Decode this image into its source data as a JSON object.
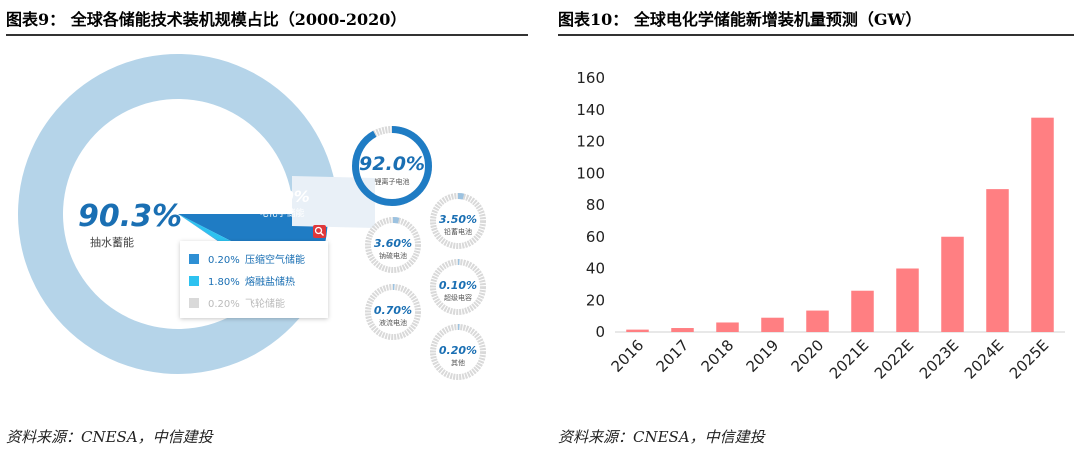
{
  "left": {
    "title": "图表9： 全球各储能技术装机规模占比（2000-2020）",
    "source": "资料来源：CNESA，中信建投",
    "chart_data": {
      "type": "pie",
      "title": "全球各储能技术装机规模占比（2000-2020）",
      "main_slices": [
        {
          "name": "抽水蓄能",
          "percent": 90.3,
          "label": "90.3%"
        },
        {
          "name": "电化学储能",
          "percent": 7.5,
          "label": "7.50%"
        },
        {
          "name": "熔融盐储热",
          "percent": 1.8,
          "label": "1.80%"
        },
        {
          "name": "压缩空气储能",
          "percent": 0.2,
          "label": "0.20%"
        },
        {
          "name": "飞轮储能",
          "percent": 0.2,
          "label": "0.20%"
        }
      ],
      "legend": [
        {
          "value": "0.20%",
          "name": "压缩空气储能",
          "color": "#2e8fd4"
        },
        {
          "value": "1.80%",
          "name": "熔融盐储热",
          "color": "#2dc2f0"
        },
        {
          "value": "0.20%",
          "name": "飞轮储能",
          "color": "#d9d9d9"
        }
      ],
      "breakdown": [
        {
          "name": "锂离子电池",
          "percent": 92.0,
          "label": "92.0%"
        },
        {
          "name": "铅蓄电池",
          "percent": 3.5,
          "label": "3.50%"
        },
        {
          "name": "钠硫电池",
          "percent": 3.6,
          "label": "3.60%"
        },
        {
          "name": "超级电容",
          "percent": 0.1,
          "label": "0.10%"
        },
        {
          "name": "液流电池",
          "percent": 0.7,
          "label": "0.70%"
        },
        {
          "name": "其他",
          "percent": 0.2,
          "label": "0.20%"
        }
      ]
    }
  },
  "right": {
    "title": "图表10： 全球电化学储能新增装机量预测（GW）",
    "source": "资料来源：CNESA，中信建投",
    "chart_data": {
      "type": "bar",
      "title": "全球电化学储能新增装机量预测（GW）",
      "categories": [
        "2016",
        "2017",
        "2018",
        "2019",
        "2020",
        "2021E",
        "2022E",
        "2023E",
        "2024E",
        "2025E"
      ],
      "values": [
        1.5,
        2.5,
        6,
        9,
        13.5,
        26,
        40,
        60,
        90,
        135
      ],
      "ylim": [
        0,
        160
      ],
      "yticks": [
        "0",
        "20",
        "40",
        "60",
        "80",
        "100",
        "120",
        "140",
        "160"
      ],
      "color": "#ff7f82",
      "grid": false
    }
  }
}
